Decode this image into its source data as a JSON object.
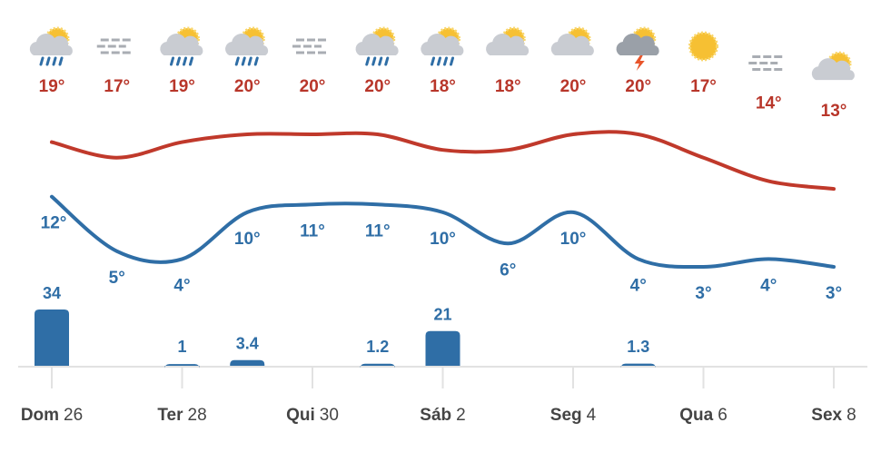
{
  "chart_data": {
    "type": "line",
    "weekdays": [
      "Dom",
      null,
      "Ter",
      null,
      "Qui",
      null,
      "Sáb",
      null,
      "Seg",
      null,
      "Qua",
      null,
      "Sex"
    ],
    "days": [
      "26",
      null,
      "28",
      null,
      "30",
      null,
      "2",
      null,
      "4",
      null,
      "6",
      null,
      "8"
    ],
    "ylim": [
      3,
      20
    ],
    "y2lim": [
      0,
      34
    ],
    "series": [
      {
        "color": "#c0392b",
        "values": [
          19,
          17,
          19,
          20,
          20,
          20,
          18,
          18,
          20,
          20,
          17,
          14,
          13
        ],
        "value_labels": [
          "19°",
          "17°",
          "19°",
          "20°",
          "20°",
          "20°",
          "18°",
          "18°",
          "20°",
          "20°",
          "17°",
          "14°",
          "13°"
        ]
      },
      {
        "color": "#2f6ea6",
        "values": [
          12,
          5,
          4,
          10,
          11,
          11,
          10,
          6,
          10,
          4,
          3,
          4,
          3
        ],
        "value_labels": [
          "12°",
          "5°",
          "4°",
          "10°",
          "11°",
          "11°",
          "10°",
          "6°",
          "10°",
          "4°",
          "3°",
          "4°",
          "3°"
        ]
      },
      {
        "type": "bar",
        "axis": "y2",
        "color": "#2f6ea6",
        "values": [
          34,
          null,
          1,
          3.4,
          null,
          1.2,
          21,
          null,
          null,
          1.3,
          null,
          null,
          null
        ]
      }
    ]
  }
}
